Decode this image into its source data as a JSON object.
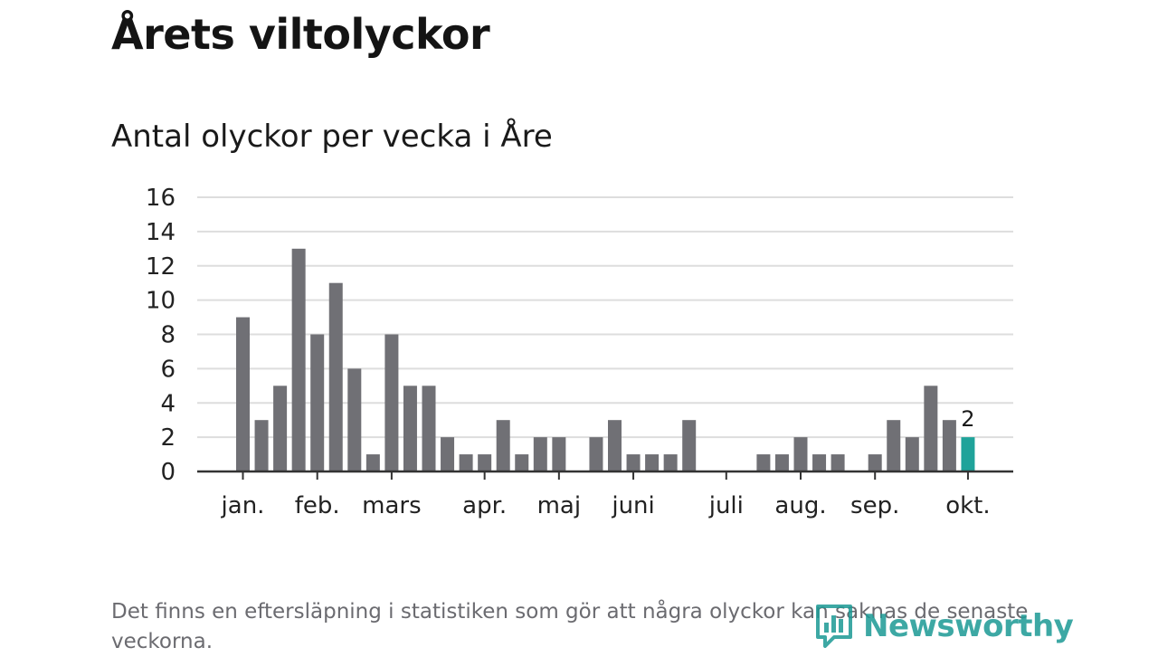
{
  "title": "Årets viltolyckor",
  "subtitle": "Antal olyckor per vecka i Åre",
  "footnote": "Det finns en eftersläpning i statistiken som gör att några olyckor kan saknas de senaste veckorna.",
  "logo": {
    "text": "Newsworthy",
    "icon": "bar-chart-speech-bubble-icon"
  },
  "colors": {
    "bar": "#707075",
    "highlight": "#1fa39a",
    "grid": "#dddddd",
    "axis": "#333333"
  },
  "chart_data": {
    "type": "bar",
    "title": "Antal olyckor per vecka i Åre",
    "xlabel": "",
    "ylabel": "",
    "ylim": [
      0,
      16
    ],
    "yticks": [
      0,
      2,
      4,
      6,
      8,
      10,
      12,
      14,
      16
    ],
    "grid": true,
    "values": [
      9,
      3,
      5,
      13,
      8,
      11,
      6,
      1,
      8,
      5,
      5,
      2,
      1,
      1,
      3,
      1,
      2,
      2,
      0,
      2,
      3,
      1,
      1,
      1,
      3,
      0,
      0,
      0,
      1,
      1,
      2,
      1,
      1,
      0,
      1,
      3,
      2,
      5,
      3,
      2
    ],
    "month_ticks": [
      {
        "label": "jan.",
        "index": 0
      },
      {
        "label": "feb.",
        "index": 4
      },
      {
        "label": "mars",
        "index": 8
      },
      {
        "label": "apr.",
        "index": 13
      },
      {
        "label": "maj",
        "index": 17
      },
      {
        "label": "juni",
        "index": 21
      },
      {
        "label": "juli",
        "index": 26
      },
      {
        "label": "aug.",
        "index": 30
      },
      {
        "label": "sep.",
        "index": 34
      },
      {
        "label": "okt.",
        "index": 39
      }
    ],
    "highlight_index": 39,
    "highlight_label": "2"
  }
}
